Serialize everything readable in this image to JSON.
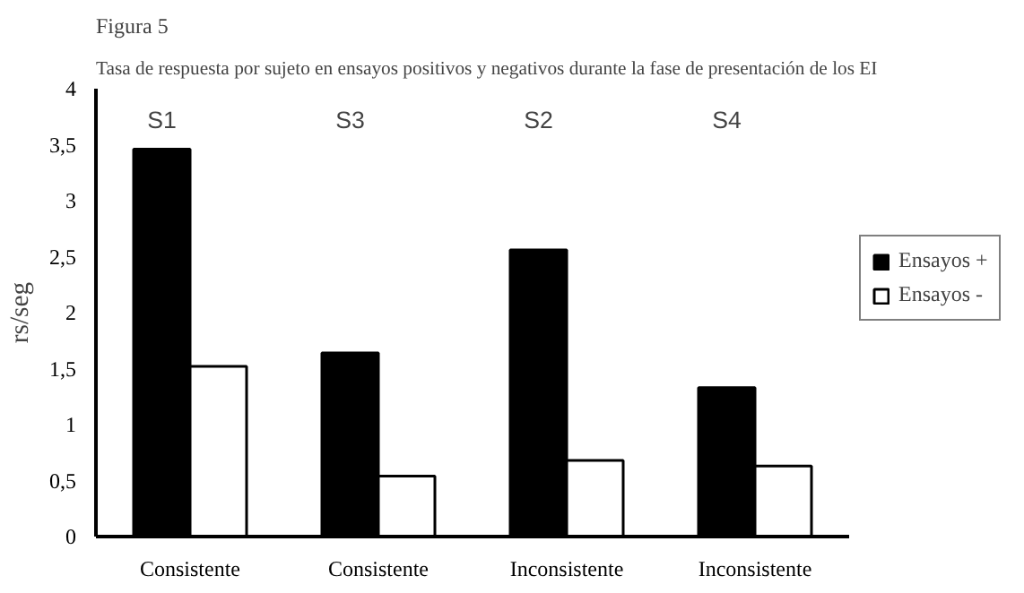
{
  "chart_data": {
    "type": "bar",
    "title": "Figura 5",
    "subtitle": "Tasa de respuesta por sujeto en ensayos positivos y negativos durante la fase de presentación de los EI",
    "ylabel": "rs/seg",
    "categories": [
      "Consistente",
      "Consistente",
      "Inconsistente",
      "Inconsistente"
    ],
    "series": [
      {
        "name": "Ensayos +",
        "color": "#000000",
        "values": [
          3.46,
          1.64,
          2.56,
          1.33
        ]
      },
      {
        "name": "Ensayos -",
        "color": "#ffffff",
        "values": [
          1.52,
          0.54,
          0.68,
          0.63
        ]
      }
    ],
    "annotations": [
      "S1",
      "S3",
      "S2",
      "S4"
    ],
    "ylim": [
      0,
      4
    ],
    "yticks": [
      0,
      {
        "value": 0.5,
        "label": "0,5"
      },
      1,
      {
        "value": 1.5,
        "label": "1,5"
      },
      2,
      {
        "value": 2.5,
        "label": "2,5"
      },
      3,
      {
        "value": 3.5,
        "label": "3,5"
      },
      4
    ],
    "legend": "right"
  }
}
